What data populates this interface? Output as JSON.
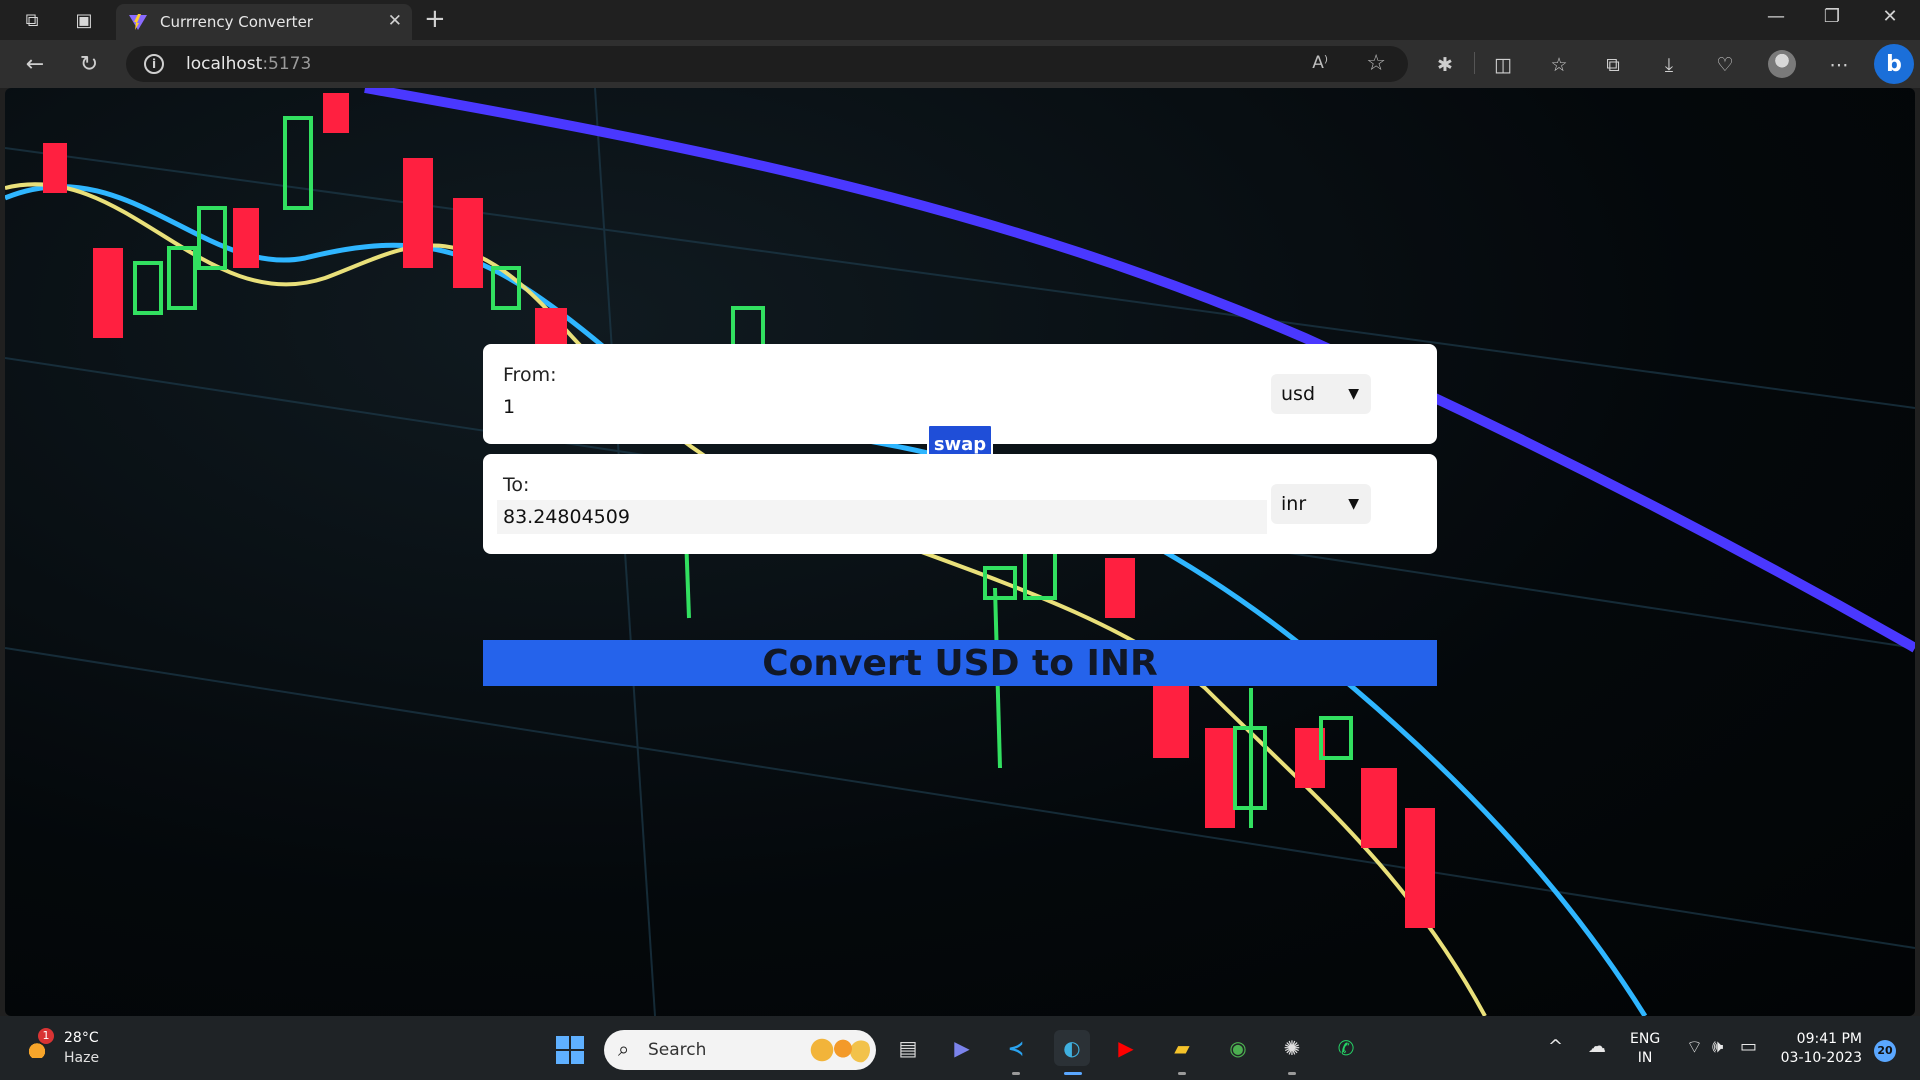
{
  "browser": {
    "tab_title": "Currrency Converter",
    "address_host": "localhost",
    "address_port": ":5173"
  },
  "app": {
    "from": {
      "label": "From:",
      "amount": "1",
      "currency": "usd"
    },
    "to": {
      "label": "To:",
      "amount": "83.24804509",
      "currency": "inr"
    },
    "swap_label": "swap",
    "convert_label": "Convert USD to INR"
  },
  "taskbar": {
    "weather_badge": "1",
    "temperature": "28°C",
    "condition": "Haze",
    "search_placeholder": "Search",
    "lang_top": "ENG",
    "lang_bottom": "IN",
    "time": "09:41 PM",
    "date": "03-10-2023",
    "notification_count": "20"
  },
  "colors": {
    "accent_blue": "#2563eb",
    "swap_blue": "#1f4ed8",
    "chrome_dark": "#202020",
    "toolbar": "#2f2f2f"
  }
}
